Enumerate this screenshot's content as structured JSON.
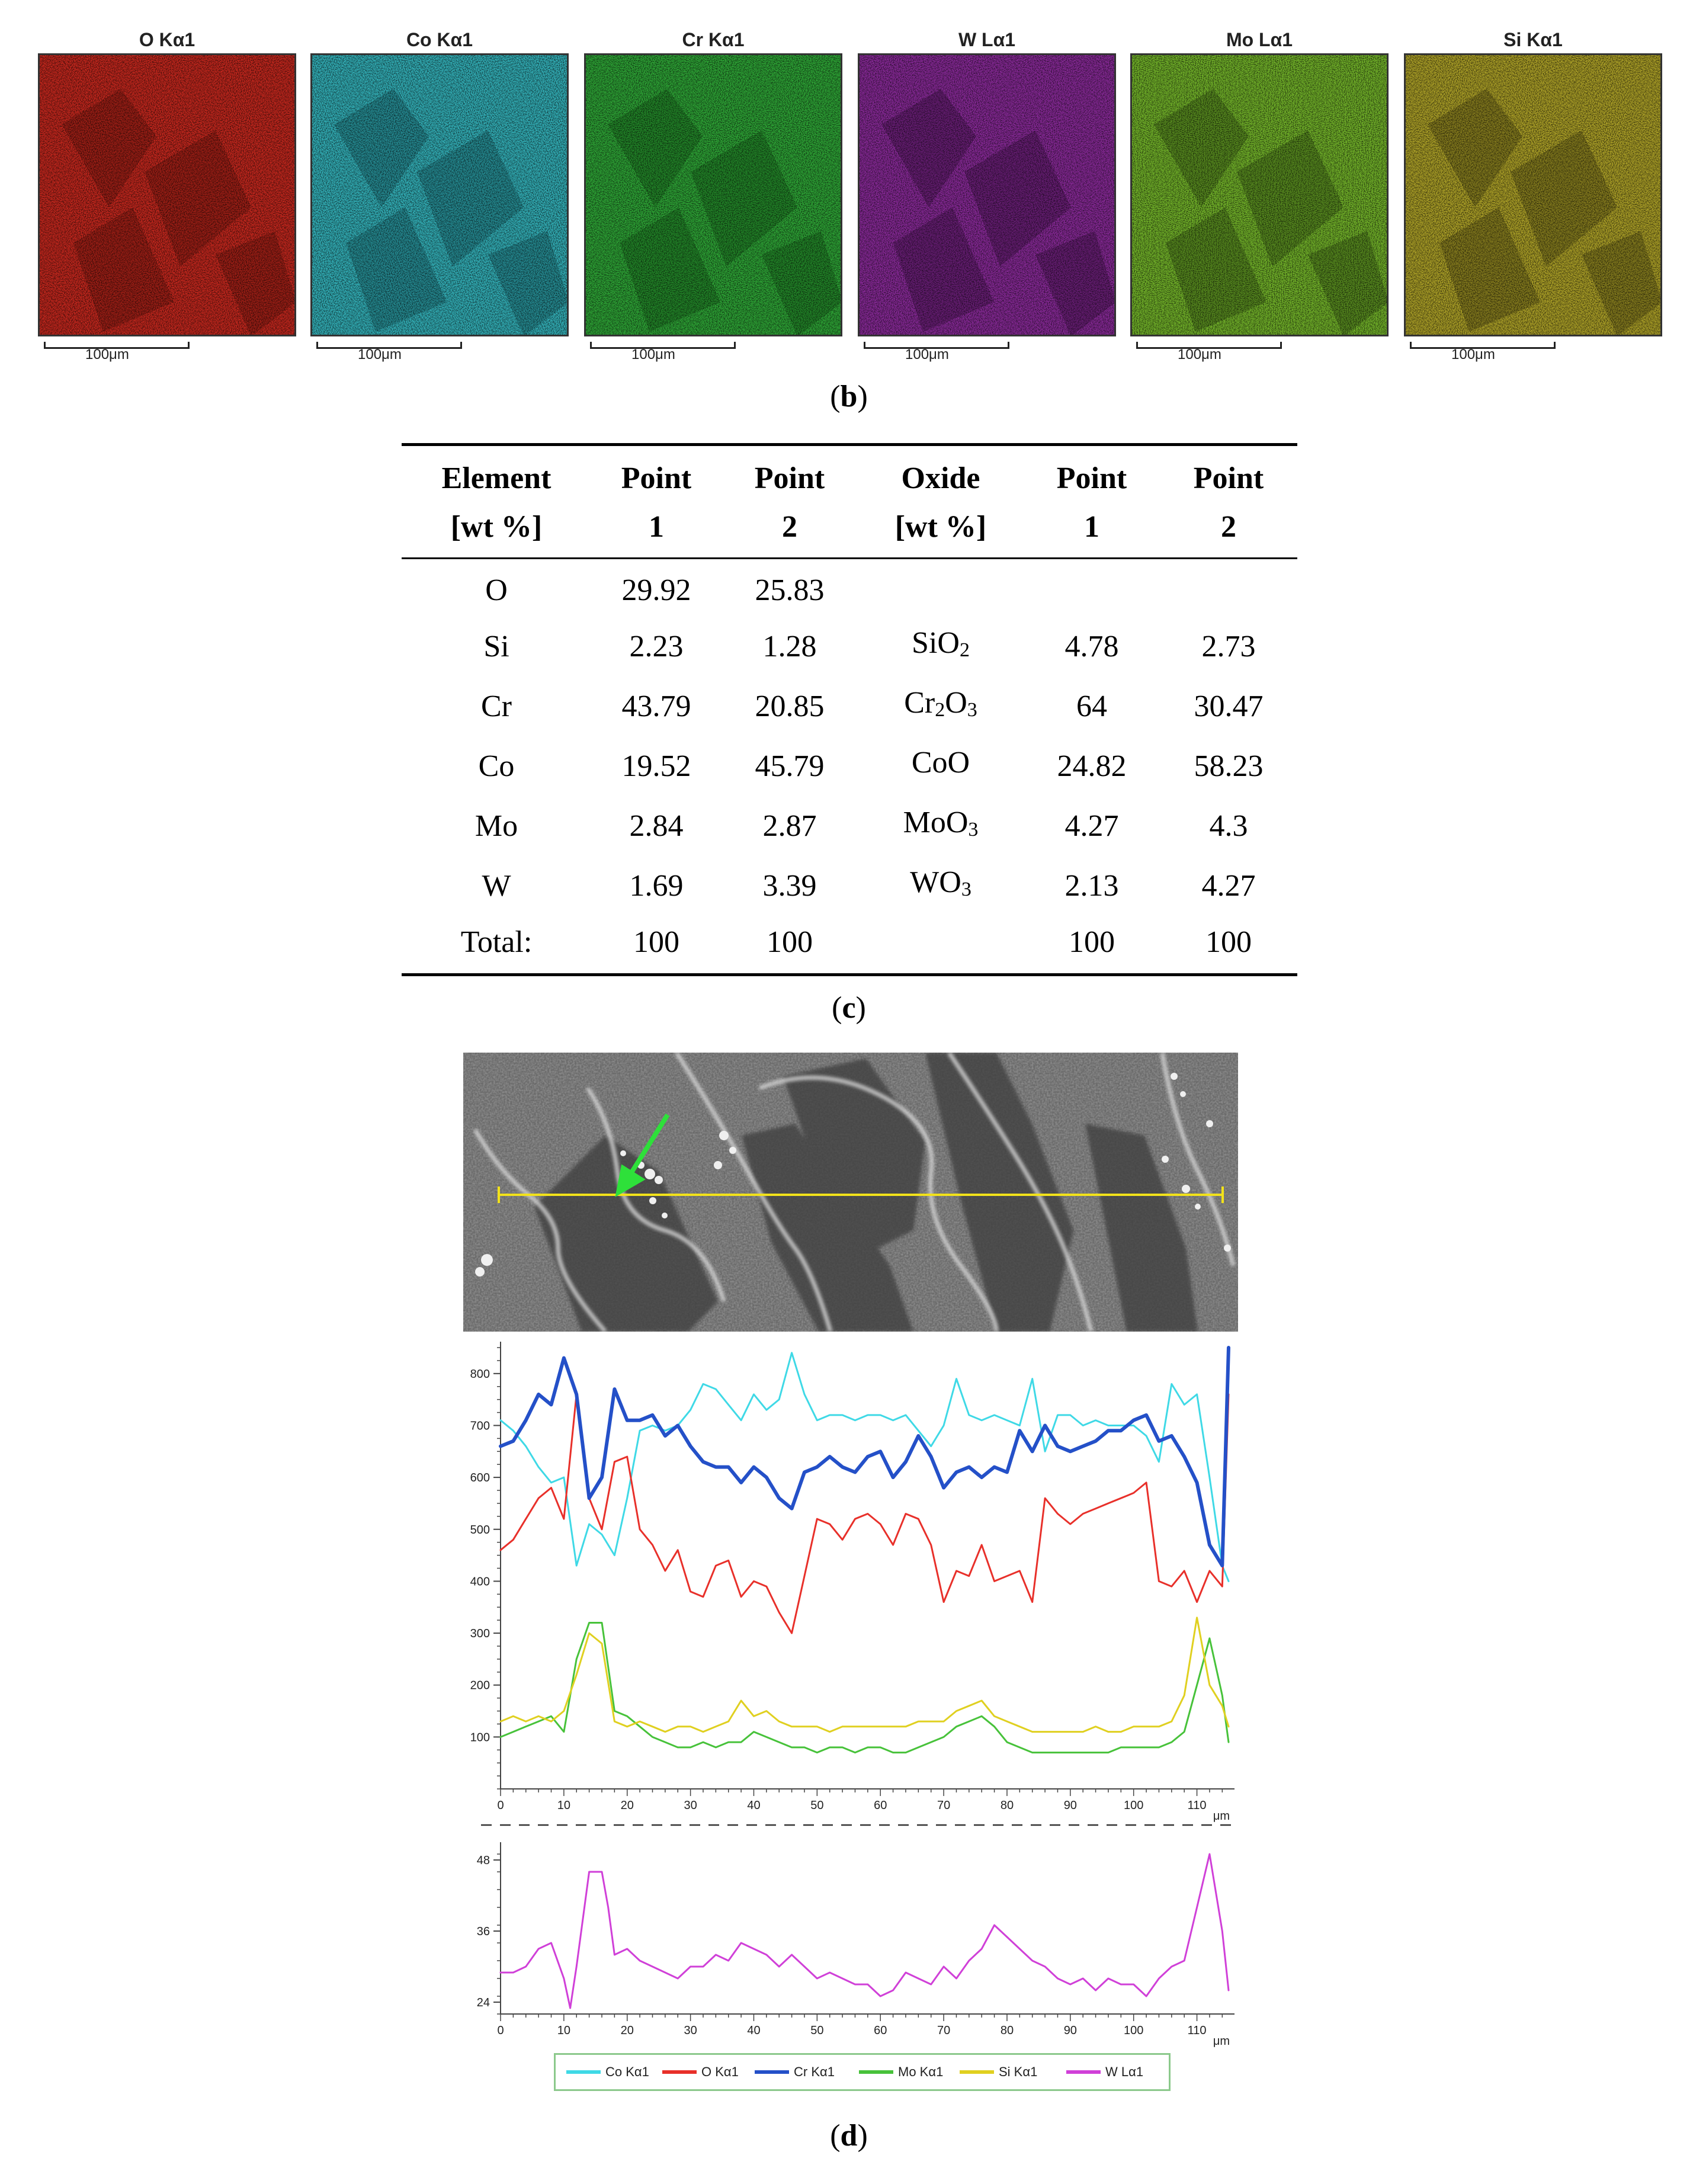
{
  "eds_maps": [
    {
      "title": "O Kα1",
      "color": "#c8281e",
      "dark": "#5a0f0a",
      "scale_label": "100μm"
    },
    {
      "title": "Co Kα1",
      "color": "#34b4bc",
      "dark": "#0f4a50",
      "scale_label": "100μm"
    },
    {
      "title": "Cr Kα1",
      "color": "#2fa837",
      "dark": "#0d4d12",
      "scale_label": "100μm"
    },
    {
      "title": "W Lα1",
      "color": "#8a2a9a",
      "dark": "#2e0a36",
      "scale_label": "100μm"
    },
    {
      "title": "Mo Lα1",
      "color": "#74b62a",
      "dark": "#26400c",
      "scale_label": "100μm"
    },
    {
      "title": "Si Kα1",
      "color": "#b0a428",
      "dark": "#3e380c",
      "scale_label": "100μm"
    }
  ],
  "captions": {
    "b": "b",
    "c": "c",
    "d": "d"
  },
  "table": {
    "headers_line1": [
      "Element",
      "Point",
      "Point",
      "Oxide",
      "Point",
      "Point"
    ],
    "headers_line2": [
      "[wt %]",
      "1",
      "2",
      "[wt %]",
      "1",
      "2"
    ],
    "rows": [
      {
        "element": "O",
        "p1": "29.92",
        "p2": "25.83",
        "oxide": "",
        "ox_sub": "",
        "ox_tail": "",
        "ox_sub2": "",
        "o1": "",
        "o2": ""
      },
      {
        "element": "Si",
        "p1": "2.23",
        "p2": "1.28",
        "oxide": "SiO",
        "ox_sub": "2",
        "ox_tail": "",
        "ox_sub2": "",
        "o1": "4.78",
        "o2": "2.73"
      },
      {
        "element": "Cr",
        "p1": "43.79",
        "p2": "20.85",
        "oxide": "Cr",
        "ox_sub": "2",
        "ox_tail": "O",
        "ox_sub2": "3",
        "o1": "64",
        "o2": "30.47"
      },
      {
        "element": "Co",
        "p1": "19.52",
        "p2": "45.79",
        "oxide": "CoO",
        "ox_sub": "",
        "ox_tail": "",
        "ox_sub2": "",
        "o1": "24.82",
        "o2": "58.23"
      },
      {
        "element": "Mo",
        "p1": "2.84",
        "p2": "2.87",
        "oxide": "MoO",
        "ox_sub": "3",
        "ox_tail": "",
        "ox_sub2": "",
        "o1": "4.27",
        "o2": "4.3"
      },
      {
        "element": "W",
        "p1": "1.69",
        "p2": "3.39",
        "oxide": "WO",
        "ox_sub": "3",
        "ox_tail": "",
        "ox_sub2": "",
        "o1": "2.13",
        "o2": "4.27"
      },
      {
        "element": "Total:",
        "p1": "100",
        "p2": "100",
        "oxide": "",
        "ox_sub": "",
        "ox_tail": "",
        "ox_sub2": "",
        "o1": "100",
        "o2": "100"
      }
    ]
  },
  "chart_data": [
    {
      "type": "line",
      "xlabel": "μm",
      "ylabel": "",
      "xlim": [
        0,
        115
      ],
      "ylim": [
        0,
        850
      ],
      "xticks": [
        0,
        10,
        20,
        30,
        40,
        50,
        60,
        70,
        80,
        90,
        100,
        110
      ],
      "yticks": [
        100,
        200,
        300,
        400,
        500,
        600,
        700,
        800
      ],
      "grid": false,
      "series": [
        {
          "name": "Co Kα1",
          "color": "#3fd9e6",
          "width": 3,
          "x": [
            0,
            2,
            4,
            6,
            8,
            10,
            12,
            14,
            16,
            18,
            20,
            22,
            24,
            26,
            28,
            30,
            32,
            34,
            36,
            38,
            40,
            42,
            44,
            46,
            48,
            50,
            52,
            54,
            56,
            58,
            60,
            62,
            64,
            66,
            68,
            70,
            72,
            74,
            76,
            78,
            80,
            82,
            84,
            86,
            88,
            90,
            92,
            94,
            96,
            98,
            100,
            102,
            104,
            106,
            108,
            110,
            112,
            114,
            115
          ],
          "y": [
            710,
            690,
            660,
            620,
            590,
            600,
            430,
            510,
            490,
            450,
            560,
            690,
            700,
            690,
            700,
            730,
            780,
            770,
            740,
            710,
            760,
            730,
            750,
            840,
            760,
            710,
            720,
            720,
            710,
            720,
            720,
            710,
            720,
            690,
            660,
            700,
            790,
            720,
            710,
            720,
            710,
            700,
            790,
            650,
            720,
            720,
            700,
            710,
            700,
            700,
            700,
            680,
            630,
            780,
            740,
            760,
            600,
            430,
            400
          ]
        },
        {
          "name": "O Kα1",
          "color": "#e8302a",
          "width": 3,
          "x": [
            0,
            2,
            4,
            6,
            8,
            10,
            12,
            14,
            16,
            18,
            20,
            22,
            24,
            26,
            28,
            30,
            32,
            34,
            36,
            38,
            40,
            42,
            44,
            46,
            48,
            50,
            52,
            54,
            56,
            58,
            60,
            62,
            64,
            66,
            68,
            70,
            72,
            74,
            76,
            78,
            80,
            82,
            84,
            86,
            88,
            90,
            92,
            94,
            96,
            98,
            100,
            102,
            104,
            106,
            108,
            110,
            112,
            114,
            115
          ],
          "y": [
            460,
            480,
            520,
            560,
            580,
            520,
            760,
            560,
            500,
            630,
            640,
            500,
            470,
            420,
            460,
            380,
            370,
            430,
            440,
            370,
            400,
            390,
            340,
            300,
            410,
            520,
            510,
            480,
            520,
            530,
            510,
            470,
            530,
            520,
            470,
            360,
            420,
            410,
            470,
            400,
            410,
            420,
            360,
            560,
            530,
            510,
            530,
            540,
            550,
            560,
            570,
            590,
            400,
            390,
            420,
            360,
            420,
            390,
            760
          ]
        },
        {
          "name": "Cr Kα1",
          "color": "#2450c8",
          "width": 6,
          "x": [
            0,
            2,
            4,
            6,
            8,
            10,
            12,
            14,
            16,
            18,
            20,
            22,
            24,
            26,
            28,
            30,
            32,
            34,
            36,
            38,
            40,
            42,
            44,
            46,
            48,
            50,
            52,
            54,
            56,
            58,
            60,
            62,
            64,
            66,
            68,
            70,
            72,
            74,
            76,
            78,
            80,
            82,
            84,
            86,
            88,
            90,
            92,
            94,
            96,
            98,
            100,
            102,
            104,
            106,
            108,
            110,
            112,
            114,
            115
          ],
          "y": [
            660,
            670,
            710,
            760,
            740,
            830,
            760,
            560,
            600,
            770,
            710,
            710,
            720,
            680,
            700,
            660,
            630,
            620,
            620,
            590,
            620,
            600,
            560,
            540,
            610,
            620,
            640,
            620,
            610,
            640,
            650,
            600,
            630,
            680,
            640,
            580,
            610,
            620,
            600,
            620,
            610,
            690,
            650,
            700,
            660,
            650,
            660,
            670,
            690,
            690,
            710,
            720,
            670,
            680,
            640,
            590,
            470,
            430,
            850
          ]
        },
        {
          "name": "Mo Kα1",
          "color": "#47c23a",
          "width": 3,
          "x": [
            0,
            2,
            4,
            6,
            8,
            10,
            12,
            14,
            16,
            18,
            20,
            22,
            24,
            26,
            28,
            30,
            32,
            34,
            36,
            38,
            40,
            42,
            44,
            46,
            48,
            50,
            52,
            54,
            56,
            58,
            60,
            62,
            64,
            66,
            68,
            70,
            72,
            74,
            76,
            78,
            80,
            82,
            84,
            86,
            88,
            90,
            92,
            94,
            96,
            98,
            100,
            102,
            104,
            106,
            108,
            110,
            112,
            114,
            115
          ],
          "y": [
            100,
            110,
            120,
            130,
            140,
            110,
            250,
            320,
            320,
            150,
            140,
            120,
            100,
            90,
            80,
            80,
            90,
            80,
            90,
            90,
            110,
            100,
            90,
            80,
            80,
            70,
            80,
            80,
            70,
            80,
            80,
            70,
            70,
            80,
            90,
            100,
            120,
            130,
            140,
            120,
            90,
            80,
            70,
            70,
            70,
            70,
            70,
            70,
            70,
            80,
            80,
            80,
            80,
            90,
            110,
            200,
            290,
            180,
            90
          ]
        },
        {
          "name": "Si Kα1",
          "color": "#e0d020",
          "width": 3,
          "x": [
            0,
            2,
            4,
            6,
            8,
            10,
            12,
            14,
            16,
            18,
            20,
            22,
            24,
            26,
            28,
            30,
            32,
            34,
            36,
            38,
            40,
            42,
            44,
            46,
            48,
            50,
            52,
            54,
            56,
            58,
            60,
            62,
            64,
            66,
            68,
            70,
            72,
            74,
            76,
            78,
            80,
            82,
            84,
            86,
            88,
            90,
            92,
            94,
            96,
            98,
            100,
            102,
            104,
            106,
            108,
            110,
            112,
            114,
            115
          ],
          "y": [
            130,
            140,
            130,
            140,
            130,
            150,
            220,
            300,
            280,
            130,
            120,
            130,
            120,
            110,
            120,
            120,
            110,
            120,
            130,
            170,
            140,
            150,
            130,
            120,
            120,
            120,
            110,
            120,
            120,
            120,
            120,
            120,
            120,
            130,
            130,
            130,
            150,
            160,
            170,
            140,
            130,
            120,
            110,
            110,
            110,
            110,
            110,
            120,
            110,
            110,
            120,
            120,
            120,
            130,
            180,
            330,
            200,
            160,
            120
          ]
        }
      ]
    },
    {
      "type": "line",
      "xlabel": "μm",
      "ylabel": "",
      "xlim": [
        0,
        115
      ],
      "ylim": [
        22,
        50
      ],
      "xticks": [
        0,
        10,
        20,
        30,
        40,
        50,
        60,
        70,
        80,
        90,
        100,
        110
      ],
      "yticks": [
        24,
        36,
        48
      ],
      "grid": false,
      "series": [
        {
          "name": "W Lα1",
          "color": "#d040d8",
          "width": 3,
          "x": [
            0,
            2,
            4,
            6,
            8,
            10,
            11,
            12,
            13,
            14,
            15,
            16,
            17,
            18,
            20,
            22,
            24,
            26,
            28,
            30,
            32,
            34,
            36,
            38,
            40,
            42,
            44,
            46,
            48,
            50,
            52,
            54,
            56,
            58,
            60,
            62,
            64,
            66,
            68,
            70,
            72,
            74,
            76,
            78,
            80,
            82,
            84,
            86,
            88,
            90,
            92,
            94,
            96,
            98,
            100,
            102,
            104,
            106,
            108,
            110,
            112,
            114,
            115
          ],
          "y": [
            29,
            29,
            30,
            33,
            34,
            28,
            23,
            30,
            38,
            46,
            46,
            46,
            40,
            32,
            33,
            31,
            30,
            29,
            28,
            30,
            30,
            32,
            31,
            34,
            33,
            32,
            30,
            32,
            30,
            28,
            29,
            28,
            27,
            27,
            25,
            26,
            29,
            28,
            27,
            30,
            28,
            31,
            33,
            37,
            35,
            33,
            31,
            30,
            28,
            27,
            28,
            26,
            28,
            27,
            27,
            25,
            28,
            30,
            31,
            40,
            49,
            36,
            26
          ]
        }
      ]
    }
  ],
  "legend": [
    {
      "label": "Co Kα1",
      "color": "#3fd9e6"
    },
    {
      "label": "O Kα1",
      "color": "#e8302a"
    },
    {
      "label": "Cr Kα1",
      "color": "#2450c8"
    },
    {
      "label": "Mo Kα1",
      "color": "#47c23a"
    },
    {
      "label": "Si Kα1",
      "color": "#e0d020"
    },
    {
      "label": "W Lα1",
      "color": "#d040d8"
    }
  ]
}
